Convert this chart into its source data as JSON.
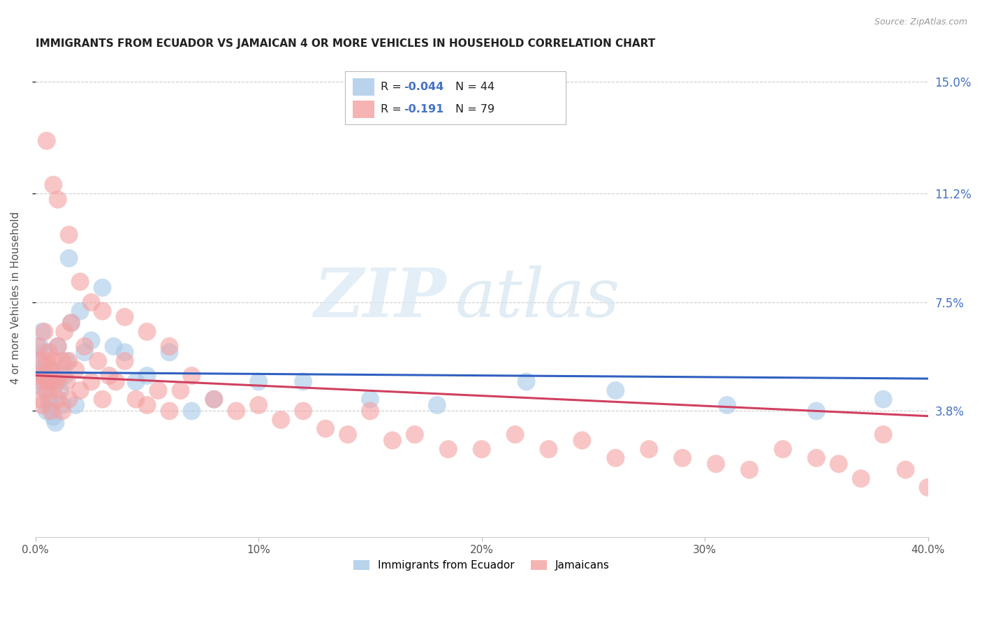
{
  "title": "IMMIGRANTS FROM ECUADOR VS JAMAICAN 4 OR MORE VEHICLES IN HOUSEHOLD CORRELATION CHART",
  "source": "Source: ZipAtlas.com",
  "ylabel": "4 or more Vehicles in Household",
  "xlim": [
    0.0,
    0.4
  ],
  "ylim": [
    -0.005,
    0.158
  ],
  "yticks": [
    0.038,
    0.075,
    0.112,
    0.15
  ],
  "ytick_labels": [
    "3.8%",
    "7.5%",
    "11.2%",
    "15.0%"
  ],
  "xticks": [
    0.0,
    0.1,
    0.2,
    0.3,
    0.4
  ],
  "xtick_labels": [
    "0.0%",
    "10%",
    "20%",
    "30%",
    "40.0%"
  ],
  "watermark_zip": "ZIP",
  "watermark_atlas": "atlas",
  "legend_blue_label": "Immigrants from Ecuador",
  "legend_pink_label": "Jamaicans",
  "legend_blue_r": "R = -0.044",
  "legend_blue_n": "N = 44",
  "legend_pink_r": "R =  -0.191",
  "legend_pink_n": "N = 79",
  "blue_color": "#a8c8e8",
  "pink_color": "#f4a0a0",
  "trend_blue_color": "#3060c0",
  "trend_pink_color": "#d04060",
  "blue_R": -0.044,
  "pink_R": -0.191,
  "blue_x": [
    0.001,
    0.002,
    0.002,
    0.003,
    0.003,
    0.004,
    0.004,
    0.005,
    0.005,
    0.006,
    0.006,
    0.007,
    0.007,
    0.008,
    0.009,
    0.01,
    0.01,
    0.011,
    0.012,
    0.013,
    0.014,
    0.015,
    0.016,
    0.018,
    0.02,
    0.022,
    0.025,
    0.03,
    0.035,
    0.04,
    0.045,
    0.05,
    0.06,
    0.07,
    0.08,
    0.1,
    0.12,
    0.15,
    0.18,
    0.22,
    0.26,
    0.31,
    0.35,
    0.38
  ],
  "blue_y": [
    0.048,
    0.055,
    0.06,
    0.052,
    0.065,
    0.058,
    0.045,
    0.05,
    0.038,
    0.048,
    0.042,
    0.052,
    0.04,
    0.036,
    0.034,
    0.048,
    0.06,
    0.045,
    0.04,
    0.05,
    0.055,
    0.09,
    0.068,
    0.04,
    0.072,
    0.058,
    0.062,
    0.08,
    0.06,
    0.058,
    0.048,
    0.05,
    0.058,
    0.038,
    0.042,
    0.048,
    0.048,
    0.042,
    0.04,
    0.048,
    0.045,
    0.04,
    0.038,
    0.042
  ],
  "pink_x": [
    0.001,
    0.001,
    0.002,
    0.002,
    0.003,
    0.003,
    0.004,
    0.004,
    0.005,
    0.005,
    0.006,
    0.006,
    0.007,
    0.007,
    0.008,
    0.008,
    0.009,
    0.01,
    0.01,
    0.011,
    0.012,
    0.012,
    0.013,
    0.014,
    0.015,
    0.015,
    0.016,
    0.018,
    0.02,
    0.022,
    0.025,
    0.028,
    0.03,
    0.033,
    0.036,
    0.04,
    0.045,
    0.05,
    0.055,
    0.06,
    0.065,
    0.07,
    0.08,
    0.09,
    0.1,
    0.11,
    0.12,
    0.13,
    0.14,
    0.15,
    0.16,
    0.17,
    0.185,
    0.2,
    0.215,
    0.23,
    0.245,
    0.26,
    0.275,
    0.29,
    0.305,
    0.32,
    0.335,
    0.35,
    0.36,
    0.37,
    0.38,
    0.39,
    0.4,
    0.005,
    0.01,
    0.015,
    0.02,
    0.025,
    0.03,
    0.04,
    0.05,
    0.06,
    0.008
  ],
  "pink_y": [
    0.06,
    0.05,
    0.055,
    0.042,
    0.048,
    0.04,
    0.065,
    0.05,
    0.055,
    0.045,
    0.048,
    0.058,
    0.052,
    0.038,
    0.055,
    0.045,
    0.048,
    0.06,
    0.042,
    0.05,
    0.055,
    0.038,
    0.065,
    0.048,
    0.055,
    0.042,
    0.068,
    0.052,
    0.045,
    0.06,
    0.048,
    0.055,
    0.042,
    0.05,
    0.048,
    0.055,
    0.042,
    0.04,
    0.045,
    0.038,
    0.045,
    0.05,
    0.042,
    0.038,
    0.04,
    0.035,
    0.038,
    0.032,
    0.03,
    0.038,
    0.028,
    0.03,
    0.025,
    0.025,
    0.03,
    0.025,
    0.028,
    0.022,
    0.025,
    0.022,
    0.02,
    0.018,
    0.025,
    0.022,
    0.02,
    0.015,
    0.03,
    0.018,
    0.012,
    0.13,
    0.11,
    0.098,
    0.082,
    0.075,
    0.072,
    0.07,
    0.065,
    0.06,
    0.115
  ]
}
